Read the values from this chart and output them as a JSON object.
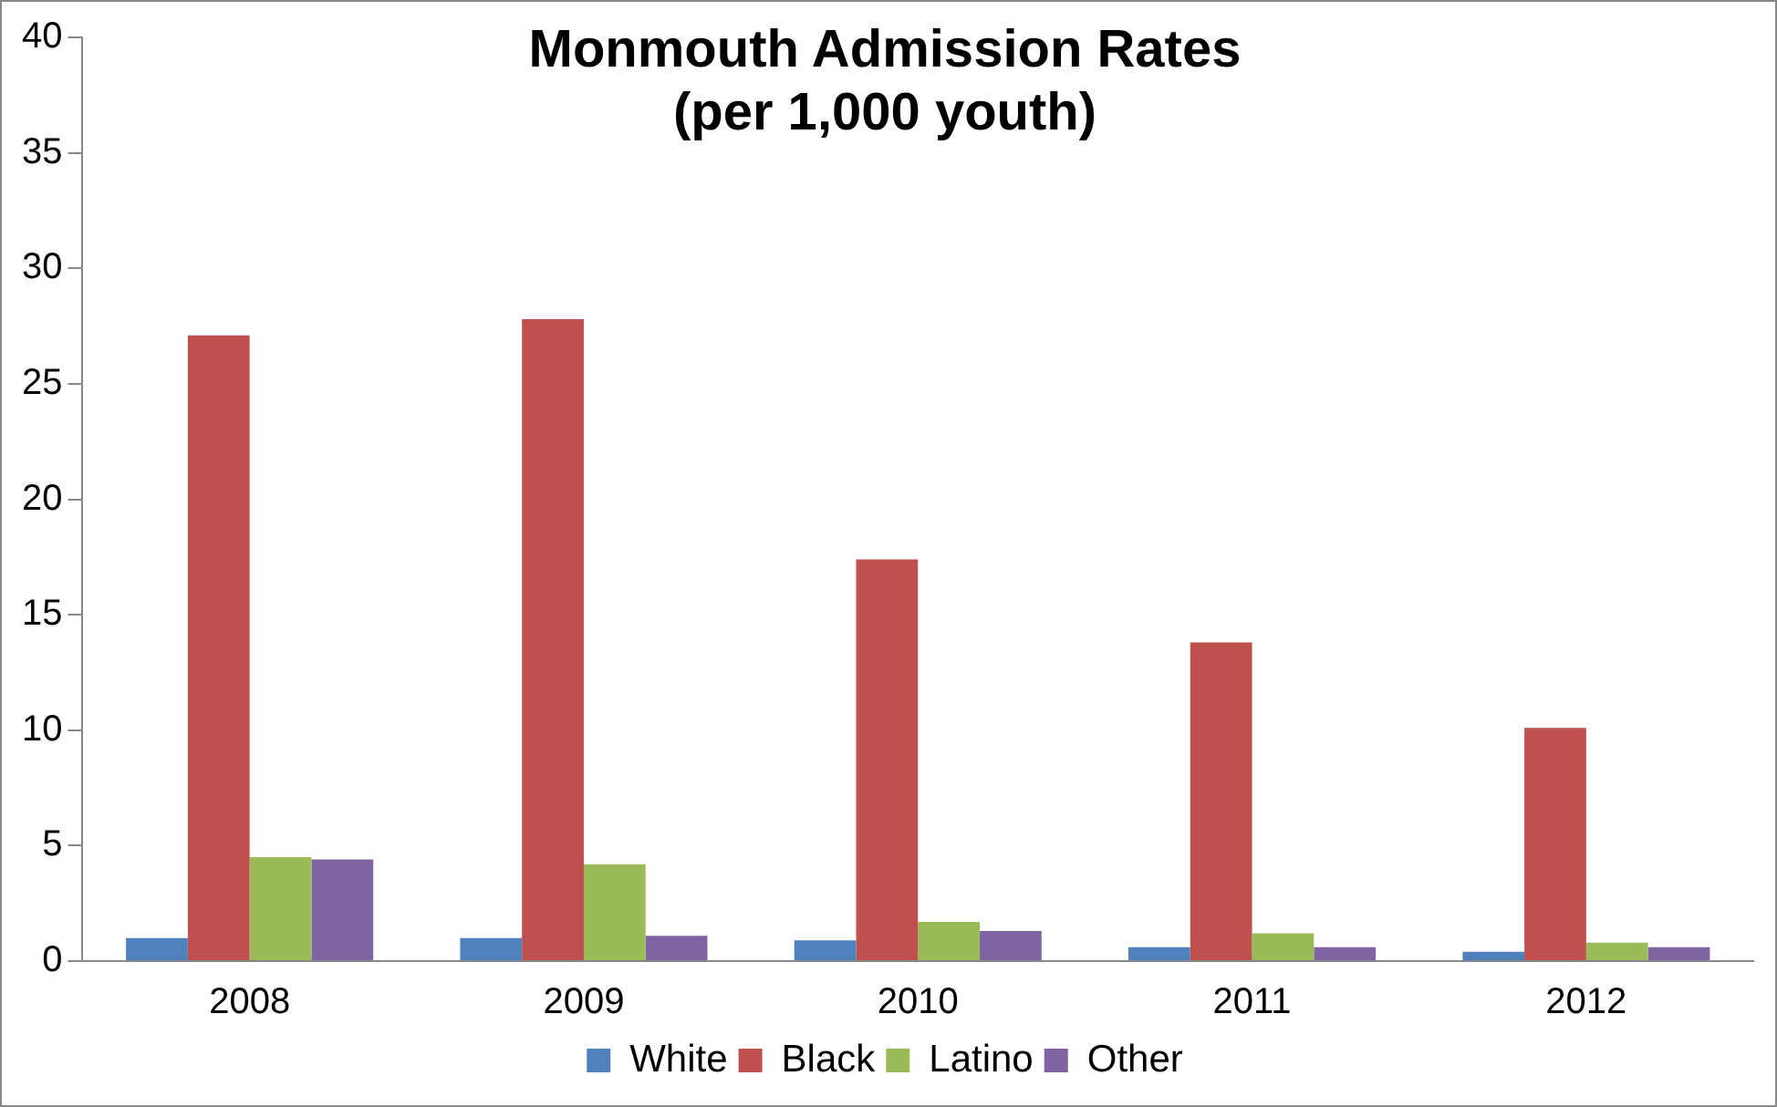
{
  "chart_data": {
    "type": "bar",
    "title": [
      "Monmouth Admission Rates",
      "(per 1,000 youth)"
    ],
    "categories": [
      "2008",
      "2009",
      "2010",
      "2011",
      "2012"
    ],
    "series": [
      {
        "name": "White",
        "color": "#4f81bd",
        "values": [
          1.0,
          1.0,
          0.9,
          0.6,
          0.4
        ]
      },
      {
        "name": "Black",
        "color": "#c0504d",
        "values": [
          27.1,
          27.8,
          17.4,
          13.8,
          10.1
        ]
      },
      {
        "name": "Latino",
        "color": "#9bbb59",
        "values": [
          4.5,
          4.2,
          1.7,
          1.2,
          0.8
        ]
      },
      {
        "name": "Other",
        "color": "#8064a2",
        "values": [
          4.4,
          1.1,
          1.3,
          0.6,
          0.6
        ]
      }
    ],
    "ylim": [
      0,
      40
    ],
    "yticks": [
      0,
      5,
      10,
      15,
      20,
      25,
      30,
      35,
      40
    ],
    "grid": false,
    "legend": "bottom"
  }
}
